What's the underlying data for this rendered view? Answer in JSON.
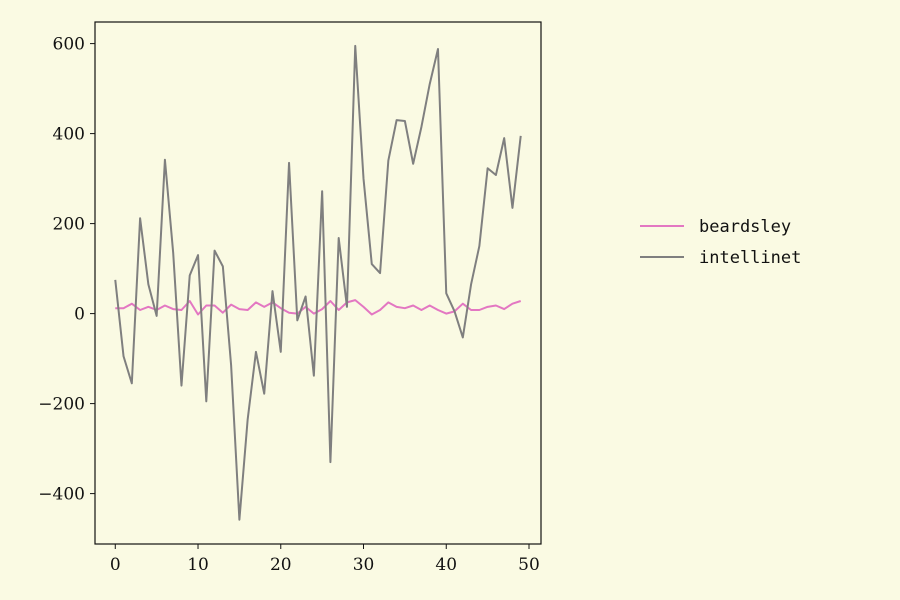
{
  "background": "#fafae3",
  "chart_data": {
    "type": "line",
    "title": "",
    "xlabel": "",
    "ylabel": "",
    "xlim": [
      -2.45,
      51.45
    ],
    "ylim": [
      -512,
      648
    ],
    "x_ticks": [
      0,
      10,
      20,
      30,
      40,
      50
    ],
    "y_ticks": [
      -400,
      -200,
      0,
      200,
      400,
      600
    ],
    "x_tick_labels": [
      "0",
      "10",
      "20",
      "30",
      "40",
      "50"
    ],
    "y_tick_labels": [
      "−400",
      "−200",
      "0",
      "200",
      "400",
      "600"
    ],
    "grid": false,
    "legend_position": "right, outside plot",
    "x": [
      0,
      1,
      2,
      3,
      4,
      5,
      6,
      7,
      8,
      9,
      10,
      11,
      12,
      13,
      14,
      15,
      16,
      17,
      18,
      19,
      20,
      21,
      22,
      23,
      24,
      25,
      26,
      27,
      28,
      29,
      30,
      31,
      32,
      33,
      34,
      35,
      36,
      37,
      38,
      39,
      40,
      41,
      42,
      43,
      44,
      45,
      46,
      47,
      48,
      49
    ],
    "series": [
      {
        "name": "beardsley",
        "color": "#e377c2",
        "values": [
          12,
          12,
          22,
          8,
          15,
          8,
          18,
          10,
          8,
          28,
          -2,
          18,
          18,
          2,
          20,
          10,
          8,
          25,
          15,
          25,
          12,
          2,
          0,
          15,
          0,
          10,
          28,
          8,
          25,
          30,
          15,
          -2,
          8,
          25,
          15,
          12,
          18,
          8,
          18,
          8,
          0,
          5,
          22,
          8,
          8,
          15,
          18,
          10,
          22,
          28
        ]
      },
      {
        "name": "intellinet",
        "color": "#7f7f7f",
        "values": [
          75,
          -95,
          -155,
          212,
          65,
          -5,
          342,
          135,
          -160,
          85,
          130,
          -195,
          140,
          105,
          -115,
          -458,
          -235,
          -85,
          -178,
          50,
          -85,
          335,
          -15,
          38,
          -138,
          272,
          -330,
          168,
          15,
          595,
          300,
          110,
          90,
          340,
          430,
          428,
          333,
          415,
          510,
          588,
          45,
          5,
          -53,
          65,
          150,
          323,
          308,
          390,
          235,
          395
        ]
      }
    ]
  }
}
